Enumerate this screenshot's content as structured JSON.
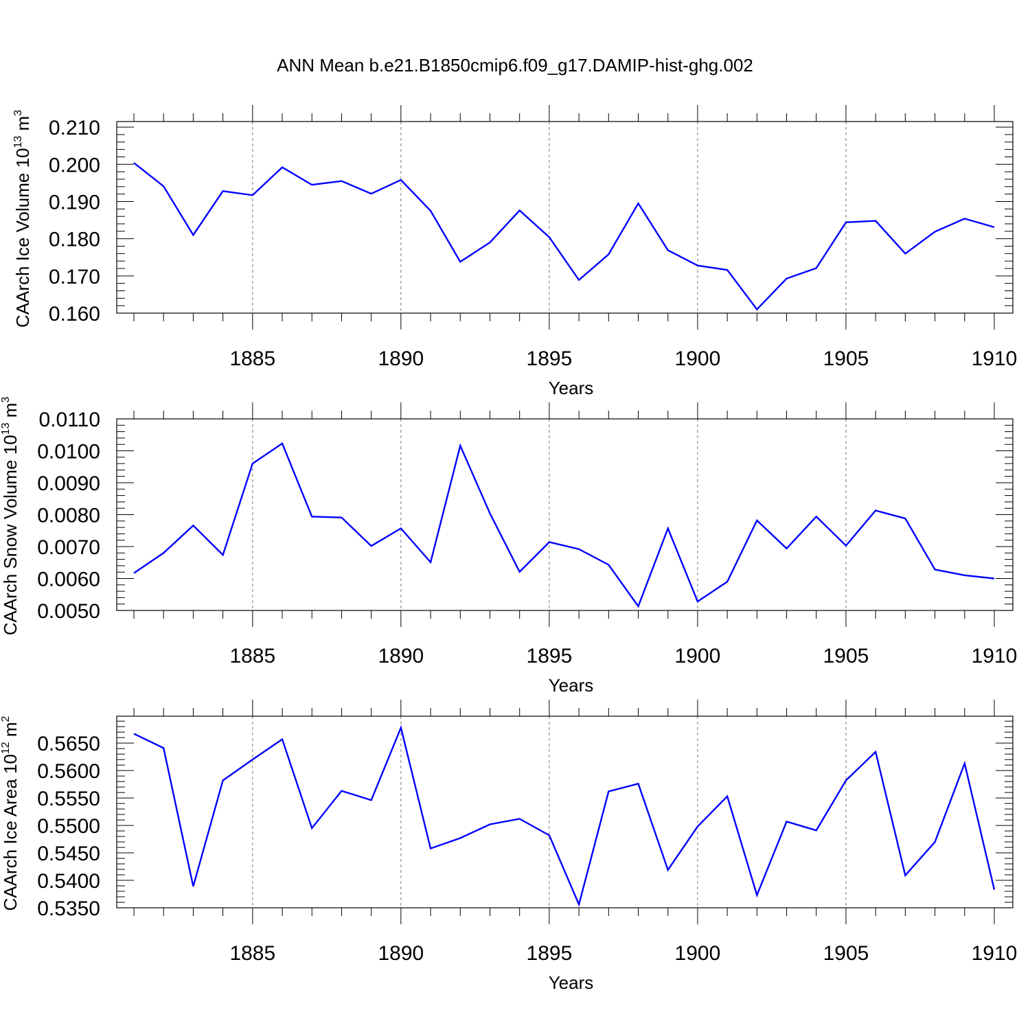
{
  "title": "ANN Mean b.e21.B1850cmip6.f09_g17.DAMIP-hist-ghg.002",
  "line_color": "#0000ff",
  "chart_data": [
    {
      "type": "line",
      "title": "",
      "xlabel": "Years",
      "ylabel_main": "CAArch Ice Volume 10",
      "ylabel_exp": "13",
      "ylabel_unit": " m",
      "ylabel_unit_exp": "3",
      "xlim": [
        1881,
        1910
      ],
      "ylim": [
        0.16,
        0.2115
      ],
      "x_ticks": [
        1885,
        1890,
        1895,
        1900,
        1905,
        1910
      ],
      "x_tick_labels": [
        "1885",
        "1890",
        "1895",
        "1900",
        "1905",
        "1910"
      ],
      "y_ticks": [
        0.16,
        0.17,
        0.18,
        0.19,
        0.2,
        0.21
      ],
      "y_tick_labels": [
        "0.160",
        "0.170",
        "0.180",
        "0.190",
        "0.200",
        "0.210"
      ],
      "grid": "vertical dashed at major x ticks",
      "series": [
        {
          "x": [
            1881,
            1882,
            1883,
            1884,
            1885,
            1886,
            1887,
            1888,
            1889,
            1890,
            1891,
            1892,
            1893,
            1894,
            1895,
            1896,
            1897,
            1898,
            1899,
            1900,
            1901,
            1902,
            1903,
            1904,
            1905,
            1906,
            1907,
            1908,
            1909,
            1910
          ],
          "values": [
            0.2004,
            0.1941,
            0.181,
            0.1928,
            0.1917,
            0.1992,
            0.1945,
            0.1955,
            0.1921,
            0.1958,
            0.1875,
            0.1738,
            0.179,
            0.1876,
            0.1804,
            0.1689,
            0.1758,
            0.1895,
            0.1769,
            0.1728,
            0.1716,
            0.161,
            0.1693,
            0.1721,
            0.1844,
            0.1848,
            0.176,
            0.1819,
            0.1854,
            0.1831
          ]
        }
      ]
    },
    {
      "type": "line",
      "title": "",
      "xlabel": "Years",
      "ylabel_main": "CAArch Snow Volume 10",
      "ylabel_exp": "13",
      "ylabel_unit": " m",
      "ylabel_unit_exp": "3",
      "xlim": [
        1881,
        1910
      ],
      "ylim": [
        0.005,
        0.011
      ],
      "x_ticks": [
        1885,
        1890,
        1895,
        1900,
        1905,
        1910
      ],
      "x_tick_labels": [
        "1885",
        "1890",
        "1895",
        "1900",
        "1905",
        "1910"
      ],
      "y_ticks": [
        0.005,
        0.006,
        0.007,
        0.008,
        0.009,
        0.01,
        0.011
      ],
      "y_tick_labels": [
        "0.0050",
        "0.0060",
        "0.0070",
        "0.0080",
        "0.0090",
        "0.0100",
        "0.0110"
      ],
      "grid": "vertical dashed at major x ticks",
      "series": [
        {
          "x": [
            1881,
            1882,
            1883,
            1884,
            1885,
            1886,
            1887,
            1888,
            1889,
            1890,
            1891,
            1892,
            1893,
            1894,
            1895,
            1896,
            1897,
            1898,
            1899,
            1900,
            1901,
            1902,
            1903,
            1904,
            1905,
            1906,
            1907,
            1908,
            1909,
            1910
          ],
          "values": [
            0.00617,
            0.0068,
            0.00766,
            0.00674,
            0.0096,
            0.01023,
            0.00794,
            0.00791,
            0.00702,
            0.00757,
            0.00651,
            0.01016,
            0.00804,
            0.00621,
            0.00714,
            0.00692,
            0.00643,
            0.00513,
            0.00757,
            0.00528,
            0.0059,
            0.00782,
            0.00694,
            0.00794,
            0.00703,
            0.00813,
            0.00788,
            0.00628,
            0.0061,
            0.006
          ]
        }
      ]
    },
    {
      "type": "line",
      "title": "",
      "xlabel": "Years",
      "ylabel_main": "CAArch Ice Area 10",
      "ylabel_exp": "12",
      "ylabel_unit": " m",
      "ylabel_unit_exp": "2",
      "xlim": [
        1881,
        1910
      ],
      "ylim": [
        0.535,
        0.5699
      ],
      "x_ticks": [
        1885,
        1890,
        1895,
        1900,
        1905,
        1910
      ],
      "x_tick_labels": [
        "1885",
        "1890",
        "1895",
        "1900",
        "1905",
        "1910"
      ],
      "y_ticks": [
        0.535,
        0.54,
        0.545,
        0.55,
        0.555,
        0.56,
        0.565
      ],
      "y_tick_labels": [
        "0.5350",
        "0.5400",
        "0.5450",
        "0.5500",
        "0.5550",
        "0.5600",
        "0.5650"
      ],
      "grid": "vertical dashed at major x ticks",
      "series": [
        {
          "x": [
            1881,
            1882,
            1883,
            1884,
            1885,
            1886,
            1887,
            1888,
            1889,
            1890,
            1891,
            1892,
            1893,
            1894,
            1895,
            1896,
            1897,
            1898,
            1899,
            1900,
            1901,
            1902,
            1903,
            1904,
            1905,
            1906,
            1907,
            1908,
            1909,
            1910
          ],
          "values": [
            0.5667,
            0.5641,
            0.5389,
            0.5582,
            0.562,
            0.5657,
            0.5495,
            0.5563,
            0.5546,
            0.5678,
            0.5458,
            0.5477,
            0.5502,
            0.5512,
            0.5482,
            0.5356,
            0.5562,
            0.5576,
            0.5419,
            0.5498,
            0.5553,
            0.5373,
            0.5507,
            0.5491,
            0.5582,
            0.5634,
            0.5409,
            0.547,
            0.5613,
            0.5383
          ]
        }
      ]
    }
  ]
}
